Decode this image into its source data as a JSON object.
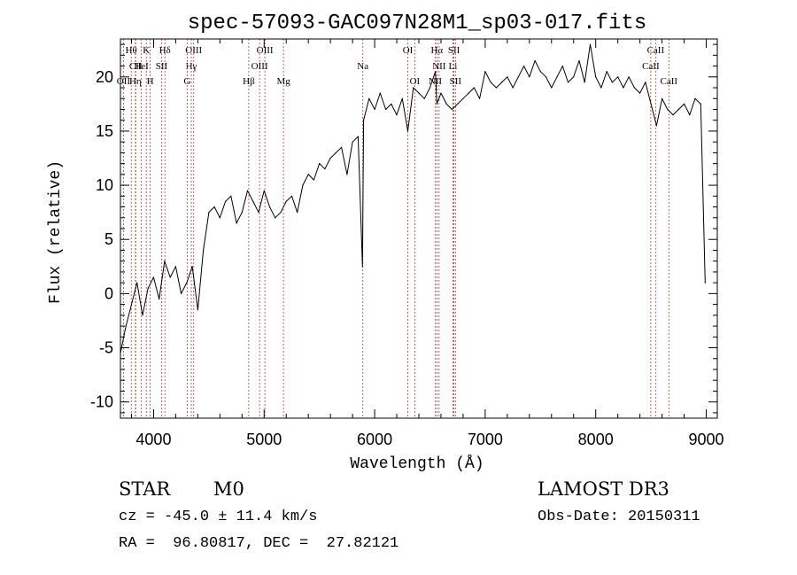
{
  "chart_data": {
    "type": "line",
    "title": "spec-57093-GAC097N28M1_sp03-017.fits",
    "xlabel": "Wavelength (Å)",
    "ylabel": "Flux (relative)",
    "xlim": [
      3700,
      9100
    ],
    "ylim": [
      -11.5,
      23.5
    ],
    "x_ticks": [
      4000,
      5000,
      6000,
      7000,
      8000,
      9000
    ],
    "y_ticks": [
      -10,
      -5,
      0,
      5,
      10,
      15,
      20
    ],
    "grid": false,
    "series": [
      {
        "name": "flux",
        "x": [
          3700,
          3750,
          3800,
          3850,
          3900,
          3950,
          4000,
          4050,
          4100,
          4150,
          4200,
          4250,
          4300,
          4350,
          4400,
          4450,
          4500,
          4550,
          4600,
          4650,
          4700,
          4750,
          4800,
          4850,
          4900,
          4950,
          5000,
          5050,
          5100,
          5150,
          5200,
          5250,
          5300,
          5350,
          5400,
          5450,
          5500,
          5550,
          5600,
          5650,
          5700,
          5750,
          5800,
          5850,
          5890,
          5900,
          5950,
          6000,
          6050,
          6100,
          6150,
          6200,
          6250,
          6300,
          6350,
          6400,
          6450,
          6500,
          6550,
          6563,
          6600,
          6650,
          6700,
          6750,
          6800,
          6850,
          6900,
          6950,
          7000,
          7050,
          7100,
          7150,
          7200,
          7250,
          7300,
          7350,
          7400,
          7450,
          7500,
          7550,
          7600,
          7650,
          7700,
          7750,
          7800,
          7850,
          7900,
          7950,
          8000,
          8050,
          8100,
          8150,
          8200,
          8250,
          8300,
          8350,
          8400,
          8450,
          8500,
          8550,
          8600,
          8650,
          8700,
          8750,
          8800,
          8850,
          8900,
          8950,
          8990
        ],
        "values": [
          -5.5,
          -3.0,
          -1.0,
          1.0,
          -2.0,
          0.5,
          1.5,
          -0.5,
          3.0,
          1.5,
          2.5,
          0.0,
          1.0,
          2.5,
          -1.5,
          4.0,
          7.5,
          8.0,
          7.0,
          8.5,
          9.0,
          6.5,
          7.5,
          9.5,
          8.5,
          7.5,
          9.5,
          8.0,
          7.0,
          7.5,
          8.5,
          9.0,
          7.5,
          10.0,
          11.0,
          10.5,
          12.0,
          11.5,
          12.5,
          13.0,
          13.5,
          11.0,
          14.0,
          14.5,
          2.5,
          16.0,
          18.0,
          17.0,
          18.5,
          17.0,
          17.5,
          16.5,
          18.0,
          15.0,
          19.0,
          18.5,
          18.0,
          19.0,
          20.5,
          17.5,
          18.5,
          17.5,
          17.0,
          17.5,
          18.0,
          18.5,
          19.0,
          18.0,
          20.5,
          19.5,
          19.0,
          19.5,
          20.0,
          19.0,
          20.0,
          21.0,
          20.0,
          21.5,
          20.5,
          20.0,
          19.0,
          20.0,
          21.0,
          19.5,
          20.0,
          21.5,
          19.5,
          23.0,
          20.0,
          19.0,
          20.5,
          19.5,
          20.0,
          19.0,
          20.0,
          19.0,
          18.5,
          19.5,
          17.5,
          15.5,
          18.0,
          17.0,
          16.5,
          17.0,
          17.5,
          16.5,
          18.0,
          17.5,
          1.0
        ]
      }
    ],
    "line_markers": [
      {
        "label": "Hθ",
        "x": 3798,
        "row": 1
      },
      {
        "label": "CII",
        "x": 3838,
        "row": 2
      },
      {
        "label": "OII",
        "x": 3727,
        "row": 3
      },
      {
        "label": "Hη",
        "x": 3835,
        "row": 3
      },
      {
        "label": "HeI",
        "x": 3889,
        "row": 2
      },
      {
        "label": "K",
        "x": 3934,
        "row": 1
      },
      {
        "label": "H",
        "x": 3969,
        "row": 3
      },
      {
        "label": "SII",
        "x": 4072,
        "row": 2
      },
      {
        "label": "Hδ",
        "x": 4102,
        "row": 1
      },
      {
        "label": "OIII",
        "x": 4363,
        "row": 1
      },
      {
        "label": "Hγ",
        "x": 4341,
        "row": 2
      },
      {
        "label": "G",
        "x": 4304,
        "row": 3
      },
      {
        "label": "Hβ",
        "x": 4861,
        "row": 3
      },
      {
        "label": "OIII",
        "x": 5007,
        "row": 1
      },
      {
        "label": "OIII",
        "x": 4959,
        "row": 2
      },
      {
        "label": "Mg",
        "x": 5175,
        "row": 3
      },
      {
        "label": "Na",
        "x": 5893,
        "row": 2
      },
      {
        "label": "OI",
        "x": 6300,
        "row": 1
      },
      {
        "label": "OI",
        "x": 6363,
        "row": 3
      },
      {
        "label": "Hα",
        "x": 6563,
        "row": 1
      },
      {
        "label": "NII",
        "x": 6583,
        "row": 2
      },
      {
        "label": "NII",
        "x": 6548,
        "row": 3
      },
      {
        "label": "SII",
        "x": 6717,
        "row": 1
      },
      {
        "label": "Li",
        "x": 6708,
        "row": 2
      },
      {
        "label": "SII",
        "x": 6731,
        "row": 3
      },
      {
        "label": "CaII",
        "x": 8542,
        "row": 1
      },
      {
        "label": "CaII",
        "x": 8498,
        "row": 2
      },
      {
        "label": "CaII",
        "x": 8662,
        "row": 3
      }
    ]
  },
  "info": {
    "object_type": "STAR",
    "subclass": "M0",
    "survey": "LAMOST DR3",
    "redshift": "cz = -45.0 ± 11.4 km/s",
    "obs_date": "Obs-Date: 20150311",
    "coords": "RA =  96.80817, DEC =  27.82121"
  },
  "colors": {
    "line": "#000000",
    "marker": "#c0392b",
    "axis": "#000000"
  }
}
